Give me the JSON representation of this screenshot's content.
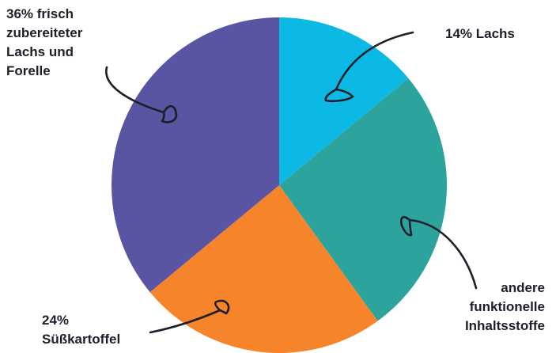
{
  "chart_data": {
    "type": "pie",
    "title": "",
    "start_angle_deg": 0,
    "direction": "clockwise",
    "slices": [
      {
        "label": "14% Lachs",
        "value": 14,
        "color": "#0bb9e4"
      },
      {
        "label": "andere funktionelle Inhaltsstoffe",
        "value": 26,
        "color": "#2ca39c"
      },
      {
        "label": "24% Süßkartoffel",
        "value": 24,
        "color": "#f5842b"
      },
      {
        "label": "36% frisch zubereiteter Lachs und Forelle",
        "value": 36,
        "color": "#5a55a3"
      }
    ],
    "labels": {
      "lachs_forelle": [
        "36% frisch",
        "zubereiteter",
        "Lachs und",
        "Forelle"
      ],
      "lachs": [
        "14% Lachs"
      ],
      "andere": [
        "andere",
        "funktionelle",
        "Inhaltsstoffe"
      ],
      "suesskartoffel": [
        "24%",
        "Süßkartoffel"
      ]
    },
    "legend": "none"
  }
}
